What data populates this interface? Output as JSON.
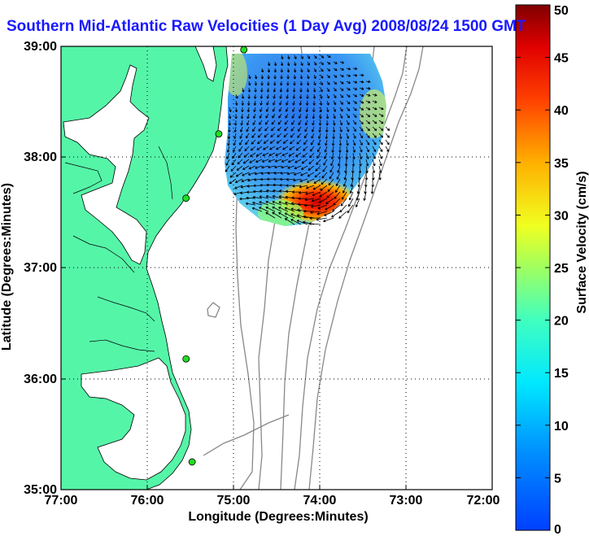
{
  "title": "Southern Mid-Atlantic Raw Velocities (1 Day Avg) 2008/08/24 1500 GMT",
  "axes": {
    "xlabel": "Longitude (Degrees:Minutes)",
    "ylabel": "Latitude (Degrees:Minutes)",
    "x_ticks": [
      "77:00",
      "76:00",
      "75:00",
      "74:00",
      "73:00",
      "72:00"
    ],
    "y_ticks": [
      "39:00",
      "38:00",
      "37:00",
      "36:00",
      "35:00"
    ],
    "xlim": [
      -77,
      -72
    ],
    "ylim": [
      35,
      39
    ],
    "grid": "dotted"
  },
  "colorbar": {
    "label": "Surface Velocity (cm/s)",
    "ticks": [
      "50",
      "45",
      "40",
      "35",
      "30",
      "25",
      "20",
      "15",
      "10",
      "5",
      "0"
    ],
    "range": [
      0,
      50
    ],
    "colormap": "jet"
  },
  "colors": {
    "land": "#55f5a8",
    "water": "#ffffff",
    "coast": "#000000",
    "bathymetry": "#888888",
    "station": "#22dd22",
    "title": "#1a1aff"
  },
  "stations": [
    {
      "lon": -74.88,
      "lat": 38.97
    },
    {
      "lon": -75.17,
      "lat": 38.21
    },
    {
      "lon": -75.55,
      "lat": 37.63
    },
    {
      "lon": -75.55,
      "lat": 36.18
    },
    {
      "lon": -75.48,
      "lat": 35.25
    }
  ]
}
